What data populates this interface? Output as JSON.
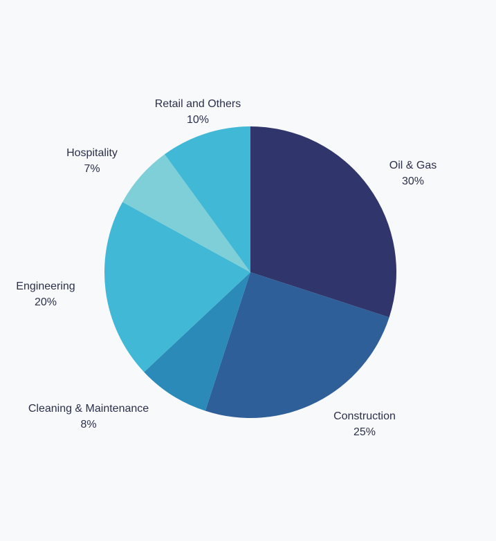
{
  "chart_data": {
    "type": "pie",
    "title": "",
    "slices": [
      {
        "name": "Oil & Gas",
        "value": 30,
        "value_label": "30%",
        "color": "#30356b"
      },
      {
        "name": "Construction",
        "value": 25,
        "value_label": "25%",
        "color": "#2f5f98"
      },
      {
        "name": "Cleaning & Maintenance",
        "value": 8,
        "value_label": "8%",
        "color": "#2c8ab8"
      },
      {
        "name": "Engineering",
        "value": 20,
        "value_label": "20%",
        "color": "#41b8d5"
      },
      {
        "name": "Hospitality",
        "value": 7,
        "value_label": "7%",
        "color": "#7fcfd9"
      },
      {
        "name": "Retail and Others",
        "value": 10,
        "value_label": "10%",
        "color": "#41b8d5"
      }
    ],
    "start": "top",
    "direction": "clockwise",
    "legend": "none"
  }
}
